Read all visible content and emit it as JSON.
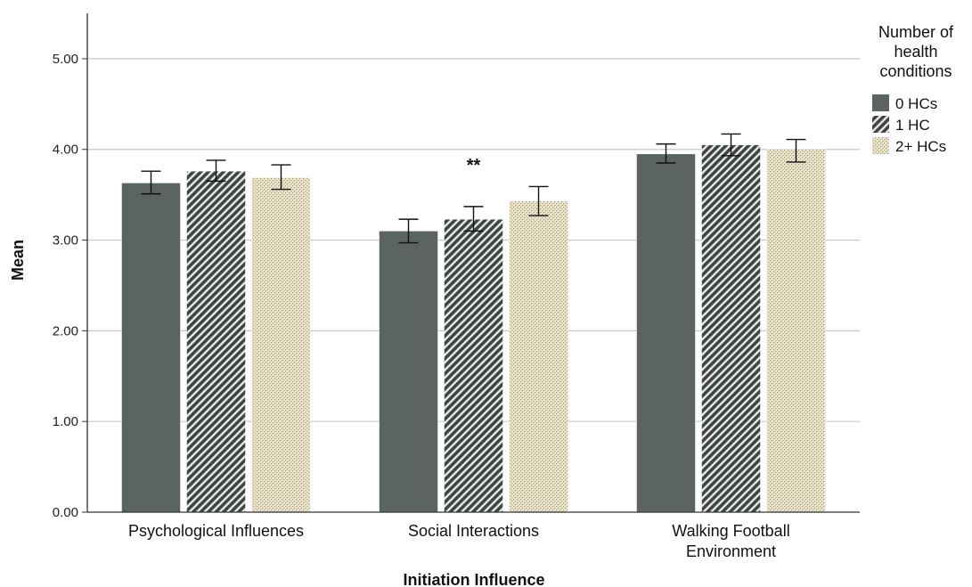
{
  "chart_data": {
    "type": "bar",
    "title": "",
    "xlabel": "Initiation Influence",
    "ylabel": "Mean",
    "categories": [
      [
        "Psychological Influences"
      ],
      [
        "Social Interactions"
      ],
      [
        "Walking Football",
        "Environment"
      ]
    ],
    "ylim": [
      0,
      5.5
    ],
    "yticks": [
      "0.00",
      "1.00",
      "2.00",
      "3.00",
      "4.00",
      "5.00"
    ],
    "grid": true,
    "legend": {
      "title": [
        "Number of",
        "health",
        "conditions"
      ],
      "placement": "top-right"
    },
    "series": [
      {
        "name": "0 HCs",
        "color": "#5b645e",
        "pattern": "solid",
        "values": [
          3.63,
          3.1,
          3.95
        ],
        "error_low": [
          3.51,
          2.97,
          3.85
        ],
        "error_high": [
          3.76,
          3.23,
          4.06
        ]
      },
      {
        "name": "1 HC",
        "color": "#5b645e",
        "pattern": "diagonal-hatch",
        "values": [
          3.76,
          3.23,
          4.05
        ],
        "error_low": [
          3.65,
          3.1,
          3.93
        ],
        "error_high": [
          3.88,
          3.37,
          4.17
        ]
      },
      {
        "name": "2+ HCs",
        "color": "#e6dfc4",
        "pattern": "dots",
        "values": [
          3.69,
          3.43,
          4.0
        ],
        "error_low": [
          3.56,
          3.27,
          3.86
        ],
        "error_high": [
          3.83,
          3.59,
          4.11
        ]
      }
    ],
    "annotations": [
      {
        "category_index": 1,
        "text": "**"
      }
    ]
  }
}
